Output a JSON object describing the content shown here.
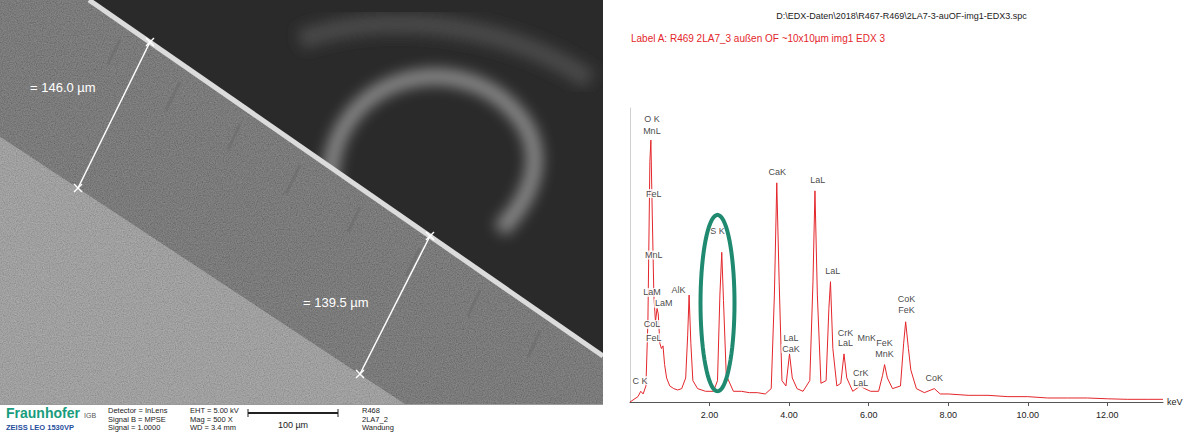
{
  "micrograph": {
    "measurements": [
      {
        "label": "= 146.0 µm"
      },
      {
        "label": "= 139.5 µm"
      }
    ],
    "info_bar": {
      "logo": "Fraunhofer",
      "institute": "IGB",
      "instrument": "ZEISS LEO 1530VP",
      "settings": [
        [
          "Detector = InLens",
          "Signal B = MPSE",
          "Signal = 1.0000"
        ],
        [
          "EHT = 5.00 kV",
          "Mag = 500 X",
          "WD = 3.4 mm"
        ]
      ],
      "scale_bar": "100 µm",
      "sample": [
        "R468",
        "2LA7_2",
        "Wandung"
      ]
    }
  },
  "chart_data": {
    "type": "line",
    "title": "D:\\EDX-Daten\\2018\\R467-R469\\2LA7-3-auOF-img1-EDX3.spc",
    "subtitle": "Label A: R469 2LA7_3 außen OF ~10x10µm img1 EDX 3",
    "x_label": "keV",
    "color": "#e3262b",
    "x": [
      0.0,
      0.1,
      0.2,
      0.27,
      0.33,
      0.4,
      0.45,
      0.5,
      0.525,
      0.56,
      0.6,
      0.64,
      0.68,
      0.71,
      0.75,
      0.79,
      0.83,
      0.87,
      0.92,
      1.0,
      1.1,
      1.2,
      1.3,
      1.4,
      1.45,
      1.486,
      1.53,
      1.58,
      1.7,
      1.9,
      2.1,
      2.2,
      2.26,
      2.307,
      2.35,
      2.42,
      2.6,
      2.8,
      3.0,
      3.2,
      3.4,
      3.55,
      3.63,
      3.69,
      3.75,
      3.82,
      3.92,
      4.01,
      4.08,
      4.2,
      4.35,
      4.52,
      4.6,
      4.65,
      4.71,
      4.8,
      4.93,
      5.0,
      5.04,
      5.1,
      5.2,
      5.3,
      5.38,
      5.45,
      5.6,
      5.79,
      5.9,
      6.05,
      6.25,
      6.35,
      6.4,
      6.47,
      6.6,
      6.8,
      6.88,
      6.93,
      7.0,
      7.06,
      7.2,
      7.4,
      7.65,
      7.8,
      8.0,
      8.5,
      9.0,
      9.5,
      10.0,
      10.5,
      11.0,
      11.5,
      12.0,
      12.5,
      13.0,
      13.4
    ],
    "values": [
      0,
      1,
      2,
      4,
      3,
      6,
      30,
      90,
      98,
      70,
      40,
      30,
      35,
      33,
      22,
      20,
      21,
      14,
      9,
      6,
      5,
      4.5,
      5,
      9,
      25,
      40,
      22,
      8,
      5,
      4,
      4,
      8,
      40,
      56,
      38,
      10,
      4,
      4,
      3.5,
      3.5,
      3,
      5,
      40,
      82,
      45,
      8,
      6,
      18,
      9,
      5,
      4,
      8,
      45,
      79,
      40,
      7,
      8,
      35,
      45,
      20,
      6,
      7,
      18,
      9,
      4,
      6,
      5,
      4,
      4,
      10,
      14,
      9,
      5,
      6,
      22,
      30,
      20,
      12,
      5,
      3.5,
      5,
      3,
      3,
      2.5,
      2.5,
      2,
      2,
      1.5,
      1.5,
      1.5,
      1.2,
      1,
      1,
      1
    ],
    "xlim": [
      0,
      13.4
    ],
    "xticks": [
      {
        "value": 2,
        "label": "2.00"
      },
      {
        "value": 4,
        "label": "4.00"
      },
      {
        "value": 6,
        "label": "6.00"
      },
      {
        "value": 8,
        "label": "8.00"
      },
      {
        "value": 10,
        "label": "10.00"
      },
      {
        "value": 12,
        "label": "12.00"
      }
    ],
    "ylim": [
      0,
      110
    ],
    "tick_labels": "x",
    "grid": false,
    "annotations": [
      {
        "text": "O K",
        "x": 0.55,
        "y": 106
      },
      {
        "text": "MnL",
        "x": 0.55,
        "y": 101.5
      },
      {
        "text": "FeL",
        "x": 0.6,
        "y": 78
      },
      {
        "text": "MnL",
        "x": 0.6,
        "y": 55
      },
      {
        "text": "LaM",
        "x": 0.55,
        "y": 41
      },
      {
        "text": "LaM",
        "x": 0.85,
        "y": 37
      },
      {
        "text": "CoL",
        "x": 0.55,
        "y": 29
      },
      {
        "text": "FeL",
        "x": 0.6,
        "y": 24
      },
      {
        "text": "C K",
        "x": 0.25,
        "y": 8
      },
      {
        "text": "AlK",
        "x": 1.22,
        "y": 42
      },
      {
        "text": "S K",
        "x": 2.2,
        "y": 64,
        "marker": "ellipse"
      },
      {
        "text": "CaK",
        "x": 3.7,
        "y": 86
      },
      {
        "text": "LaL",
        "x": 4.72,
        "y": 83
      },
      {
        "text": "LaL",
        "x": 5.1,
        "y": 49
      },
      {
        "text": "LaL",
        "x": 4.05,
        "y": 24
      },
      {
        "text": "CaK",
        "x": 4.05,
        "y": 20
      },
      {
        "text": "CrK",
        "x": 5.42,
        "y": 26
      },
      {
        "text": "LaL",
        "x": 5.42,
        "y": 22
      },
      {
        "text": "CrK",
        "x": 5.8,
        "y": 11
      },
      {
        "text": "LaL",
        "x": 5.8,
        "y": 7
      },
      {
        "text": "MnK",
        "x": 5.95,
        "y": 24
      },
      {
        "text": "FeK",
        "x": 6.4,
        "y": 22
      },
      {
        "text": "MnK",
        "x": 6.4,
        "y": 18
      },
      {
        "text": "CoK",
        "x": 6.95,
        "y": 38.5
      },
      {
        "text": "FeK",
        "x": 6.95,
        "y": 34.5
      },
      {
        "text": "CoK",
        "x": 7.65,
        "y": 9
      }
    ]
  }
}
